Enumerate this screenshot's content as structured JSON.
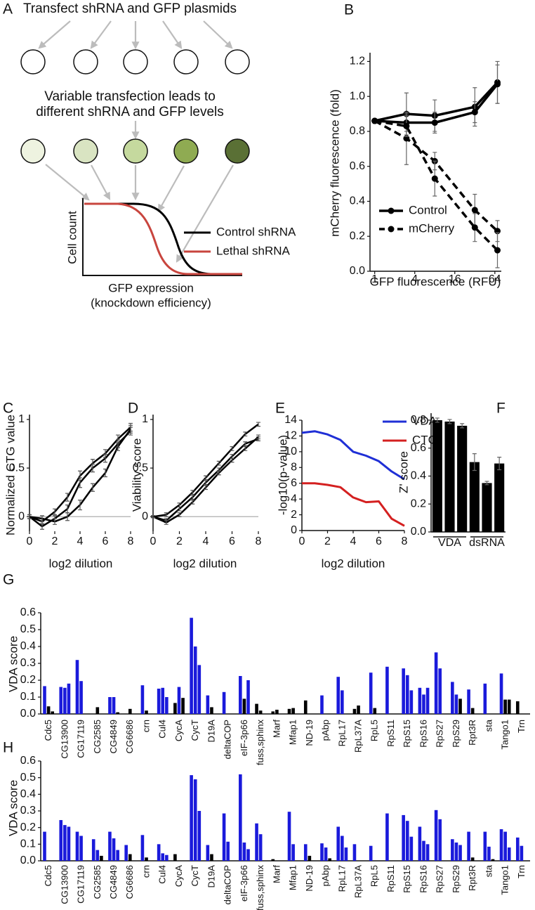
{
  "diagram": {
    "panel_label": "A",
    "top_text": "Transfect shRNA and GFP plasmids",
    "middle_text": [
      "Variable transfection leads to",
      "different shRNA and GFP levels"
    ],
    "plot": {
      "y_label": "Cell count",
      "x_label": [
        "GFP expression",
        "(knockdown efficiency)"
      ],
      "legend": [
        "Control shRNA",
        "Lethal shRNA"
      ]
    }
  },
  "chart_data": [
    {
      "panel_label": "B",
      "type": "line",
      "y_label": "mCherry fluorescence (fold)",
      "x_label": "GFP fluorescence (RFU)",
      "xscale": "log2",
      "xlim": [
        0.85,
        80
      ],
      "xticks": [
        1,
        4,
        16,
        64
      ],
      "ylim": [
        0,
        1.25
      ],
      "yticks": [
        {
          "value": 0,
          "label": "0.0"
        },
        0.2,
        0.4,
        0.6,
        0.8,
        {
          "value": 1,
          "label": "1.0"
        },
        1.2
      ],
      "markers": true,
      "x": [
        1,
        3,
        8,
        32,
        70
      ],
      "series": [
        {
          "name": "Control",
          "color": "#000000",
          "dashed": false,
          "replicates": [
            {
              "values": [
                0.86,
                0.9,
                0.89,
                0.94,
                1.08
              ],
              "errors": [
                0,
                0.12,
                0.09,
                0.11,
                0.12
              ]
            },
            {
              "values": [
                0.86,
                0.85,
                0.85,
                0.91,
                1.07
              ],
              "errors": [
                0,
                0.05,
                0.06,
                0.06,
                0.11
              ]
            }
          ]
        },
        {
          "name": "mCherry",
          "color": "#000000",
          "dashed": true,
          "replicates": [
            {
              "values": [
                0.86,
                0.76,
                0.63,
                0.35,
                0.23
              ],
              "errors": [
                0,
                0.15,
                0.05,
                0.09,
                0.06
              ]
            },
            {
              "values": [
                0.86,
                0.83,
                0.53,
                0.25,
                0.12
              ],
              "errors": [
                0,
                0.06,
                0.1,
                0.08,
                0.1
              ]
            }
          ]
        }
      ]
    },
    {
      "panel_label": "C",
      "type": "line",
      "y_label": "Normalized CTG value",
      "x_label": "log2 dilution",
      "xlim": [
        0,
        8
      ],
      "xticks": [
        0,
        2,
        4,
        6,
        8
      ],
      "ylim": [
        -0.15,
        1.05
      ],
      "yticks": [
        0,
        0.5,
        1
      ],
      "color": "#000000",
      "x": [
        0,
        1,
        2,
        3,
        4,
        5,
        6,
        7,
        8
      ],
      "series": [
        {
          "values": [
            0,
            -0.05,
            0.05,
            0.2,
            0.42,
            0.55,
            0.65,
            0.8,
            0.92
          ],
          "errors": [
            0.02,
            0.03,
            0.03,
            0.04,
            0.05,
            0.04,
            0.04,
            0.04,
            0.04
          ]
        },
        {
          "values": [
            0,
            -0.1,
            -0.02,
            0.08,
            0.35,
            0.5,
            0.6,
            0.75,
            0.88
          ],
          "errors": [
            0.02,
            0.03,
            0.03,
            0.04,
            0.05,
            0.04,
            0.04,
            0.04,
            0.04
          ]
        },
        {
          "values": [
            0,
            -0.02,
            -0.05,
            0,
            0.12,
            0.3,
            0.45,
            0.72,
            0.9
          ],
          "errors": [
            0.02,
            0.03,
            0.03,
            0.04,
            0.05,
            0.04,
            0.04,
            0.04,
            0.04
          ]
        }
      ]
    },
    {
      "panel_label": "D",
      "type": "line",
      "y_label": "Viability score",
      "x_label": "log2 dilution",
      "xlim": [
        0,
        8
      ],
      "xticks": [
        0,
        2,
        4,
        6,
        8
      ],
      "ylim": [
        -0.15,
        1.05
      ],
      "yticks": [
        0,
        0.5,
        1
      ],
      "color": "#000000",
      "x": [
        0,
        1,
        2,
        3,
        4,
        5,
        6,
        7,
        8
      ],
      "series": [
        {
          "values": [
            0,
            0.02,
            0.12,
            0.25,
            0.4,
            0.55,
            0.7,
            0.85,
            0.95
          ],
          "errors": [
            0.01,
            0.02,
            0.02,
            0.02,
            0.02,
            0.02,
            0.02,
            0.02,
            0.02
          ]
        },
        {
          "values": [
            0,
            -0.04,
            0.08,
            0.2,
            0.35,
            0.48,
            0.62,
            0.75,
            0.8
          ],
          "errors": [
            0.01,
            0.02,
            0.02,
            0.02,
            0.02,
            0.02,
            0.02,
            0.02,
            0.02
          ]
        },
        {
          "values": [
            0,
            -0.06,
            0.02,
            0.15,
            0.3,
            0.45,
            0.58,
            0.7,
            0.82
          ],
          "errors": [
            0.01,
            0.02,
            0.02,
            0.02,
            0.02,
            0.02,
            0.02,
            0.02,
            0.02
          ]
        }
      ]
    },
    {
      "panel_label": "E",
      "type": "line",
      "y_label": "-log10(p-value)",
      "x_label": "log2 dilution",
      "xlim": [
        0,
        8
      ],
      "xticks": [
        0,
        2,
        4,
        6,
        8
      ],
      "ylim": [
        0,
        14
      ],
      "yticks": [
        0,
        2,
        4,
        6,
        8,
        10,
        12,
        14
      ],
      "x": [
        0,
        1,
        2,
        3,
        4,
        5,
        6,
        7,
        8
      ],
      "series": [
        {
          "name": "VDA",
          "color": "#1f2fd6",
          "values": [
            12.4,
            12.6,
            12.2,
            11.5,
            10,
            9.5,
            8.8,
            7.5,
            6.5
          ]
        },
        {
          "name": "CTG",
          "color": "#d42020",
          "values": [
            6,
            6,
            5.8,
            5.5,
            4.2,
            3.6,
            3.7,
            1.5,
            0.6
          ]
        }
      ]
    },
    {
      "panel_label": "F",
      "type": "bar",
      "y_label": "Z' score",
      "ylim": [
        0,
        0.85
      ],
      "yticks": [
        {
          "value": 0,
          "label": "0.0"
        },
        0.2,
        0.4,
        0.6,
        0.8
      ],
      "color": "#000000",
      "groups": [
        {
          "label": "VDA",
          "values": [
            0.8,
            0.79,
            0.76
          ],
          "errors": [
            0.015,
            0.015,
            0.015
          ]
        },
        {
          "label": "dsRNA",
          "values": [
            0.5,
            0.35,
            0.49
          ],
          "errors": [
            0.06,
            0.012,
            0.045
          ]
        }
      ]
    },
    {
      "panel_label": "G",
      "type": "bar",
      "y_label": "VDA score",
      "ylim": [
        0,
        0.6
      ],
      "yticks": [
        {
          "value": 0,
          "label": "0.0"
        },
        0.1,
        0.2,
        0.3,
        0.4,
        0.5,
        0.6
      ],
      "color": "#000000",
      "highlight_color": "#1a1adb",
      "categories": [
        "Cdc5",
        "CG13900",
        "CG17119",
        "CG2585",
        "CG4849",
        "CG6686",
        "crn",
        "Cul4",
        "CycA",
        "CycT",
        "D19A",
        "deltaCOP",
        "eIF-3p66",
        "fuss,sphinx",
        "Marf",
        "Mfap1",
        "ND-19",
        "pAbp",
        "RpL17",
        "RpL37A",
        "RpL5",
        "RpS11",
        "RpS15",
        "RpS16",
        "RpS27",
        "RpS29",
        "Rpt3R",
        "sta",
        "Tango1",
        "Trn"
      ],
      "series": [
        {
          "values": [
            0.165,
            0.16,
            0.32,
            0,
            0.1,
            0,
            0.17,
            0.15,
            0.065,
            0.57,
            0.11,
            0.13,
            0.225,
            0.06,
            0.015,
            0.03,
            0.08,
            0.11,
            0.22,
            0.03,
            0.245,
            0.28,
            0.27,
            0.155,
            0.365,
            0.19,
            0.145,
            0.18,
            0.24,
            0.075
          ],
          "highlight": [
            true,
            true,
            true,
            false,
            true,
            false,
            true,
            true,
            false,
            true,
            true,
            true,
            true,
            false,
            false,
            false,
            false,
            true,
            true,
            false,
            true,
            true,
            true,
            true,
            true,
            true,
            true,
            true,
            true,
            false
          ]
        },
        {
          "values": [
            0.045,
            0.155,
            0.195,
            0.04,
            0.1,
            0.03,
            0.02,
            0.155,
            0.16,
            0.4,
            0.04,
            0,
            0.09,
            0.02,
            0.025,
            0.035,
            0,
            0,
            0.14,
            0.05,
            0.035,
            0,
            0.23,
            0.115,
            0.27,
            0.115,
            0.035,
            0,
            0.085,
            0
          ],
          "highlight": [
            false,
            true,
            true,
            false,
            true,
            false,
            false,
            true,
            true,
            true,
            false,
            false,
            false,
            false,
            false,
            false,
            false,
            false,
            true,
            false,
            false,
            false,
            true,
            true,
            true,
            true,
            false,
            false,
            false,
            false
          ]
        },
        {
          "values": [
            0.015,
            0.18,
            0,
            0,
            0.01,
            0,
            0,
            0.1,
            0.095,
            0.29,
            0,
            0,
            0.2,
            0,
            0,
            0,
            0,
            0,
            0,
            0,
            0,
            0,
            0.14,
            0.155,
            0,
            0.09,
            0,
            0,
            0.085,
            0
          ],
          "highlight": [
            false,
            true,
            false,
            false,
            false,
            false,
            false,
            true,
            false,
            true,
            false,
            false,
            true,
            false,
            false,
            false,
            false,
            false,
            false,
            false,
            false,
            false,
            true,
            true,
            false,
            false,
            false,
            false,
            false,
            false
          ]
        }
      ]
    },
    {
      "panel_label": "H",
      "type": "bar",
      "y_label": "VDA score",
      "ylim": [
        0,
        0.6
      ],
      "yticks": [
        {
          "value": 0,
          "label": "0.0"
        },
        0.1,
        0.2,
        0.3,
        0.4,
        0.5,
        0.6
      ],
      "color": "#000000",
      "highlight_color": "#1a1adb",
      "categories": [
        "Cdc5",
        "CG13900",
        "CG17119",
        "CG2585",
        "CG4849",
        "CG6686",
        "crn",
        "Cul4",
        "CycA",
        "CycT",
        "D19A",
        "deltaCOP",
        "eIF-3p66",
        "fuss,sphinx",
        "Marf",
        "Mfap1",
        "ND-19",
        "pAbp",
        "RpL17",
        "RpL37A",
        "RpL5",
        "RpS11",
        "RpS15",
        "RpS16",
        "RpS27",
        "RpS29",
        "Rpt3R",
        "sta",
        "Tango1",
        "Trn"
      ],
      "series": [
        {
          "values": [
            0.175,
            0.245,
            0.175,
            0.13,
            0.175,
            0.095,
            0.155,
            0.1,
            0.04,
            0.515,
            0.095,
            0.285,
            0.52,
            0.225,
            0.01,
            0.295,
            0.1,
            0.105,
            0.205,
            0.1,
            0.09,
            0.285,
            0.275,
            0.205,
            0.305,
            0.13,
            0.175,
            0.175,
            0.19,
            0.14
          ],
          "highlight": [
            true,
            true,
            true,
            true,
            true,
            true,
            true,
            true,
            false,
            true,
            true,
            true,
            true,
            true,
            false,
            true,
            true,
            true,
            true,
            true,
            true,
            true,
            true,
            true,
            true,
            true,
            true,
            true,
            true,
            true
          ]
        },
        {
          "values": [
            0,
            0.215,
            0.15,
            0.065,
            0.135,
            0.04,
            0.02,
            0.045,
            0,
            0.49,
            0.04,
            0.115,
            0.11,
            0.16,
            0,
            0.1,
            0.03,
            0.08,
            0.15,
            0,
            0,
            0,
            0.24,
            0.12,
            0.25,
            0.11,
            0.02,
            0.085,
            0.175,
            0.09
          ],
          "highlight": [
            false,
            true,
            true,
            true,
            true,
            false,
            false,
            true,
            false,
            true,
            false,
            true,
            true,
            true,
            false,
            true,
            false,
            true,
            true,
            false,
            false,
            false,
            true,
            true,
            true,
            true,
            false,
            true,
            true,
            true
          ]
        },
        {
          "values": [
            0,
            0.205,
            0,
            0.03,
            0.065,
            0,
            0,
            0.035,
            0,
            0.3,
            0,
            0,
            0.07,
            0,
            0,
            0,
            0,
            0.015,
            0.08,
            0,
            0,
            0,
            0.145,
            0.1,
            0,
            0.095,
            0,
            0.01,
            0.08,
            0
          ],
          "highlight": [
            false,
            true,
            false,
            false,
            true,
            false,
            false,
            true,
            false,
            true,
            false,
            false,
            true,
            false,
            false,
            false,
            false,
            false,
            true,
            false,
            false,
            false,
            true,
            true,
            false,
            true,
            false,
            false,
            true,
            false
          ]
        }
      ]
    }
  ]
}
